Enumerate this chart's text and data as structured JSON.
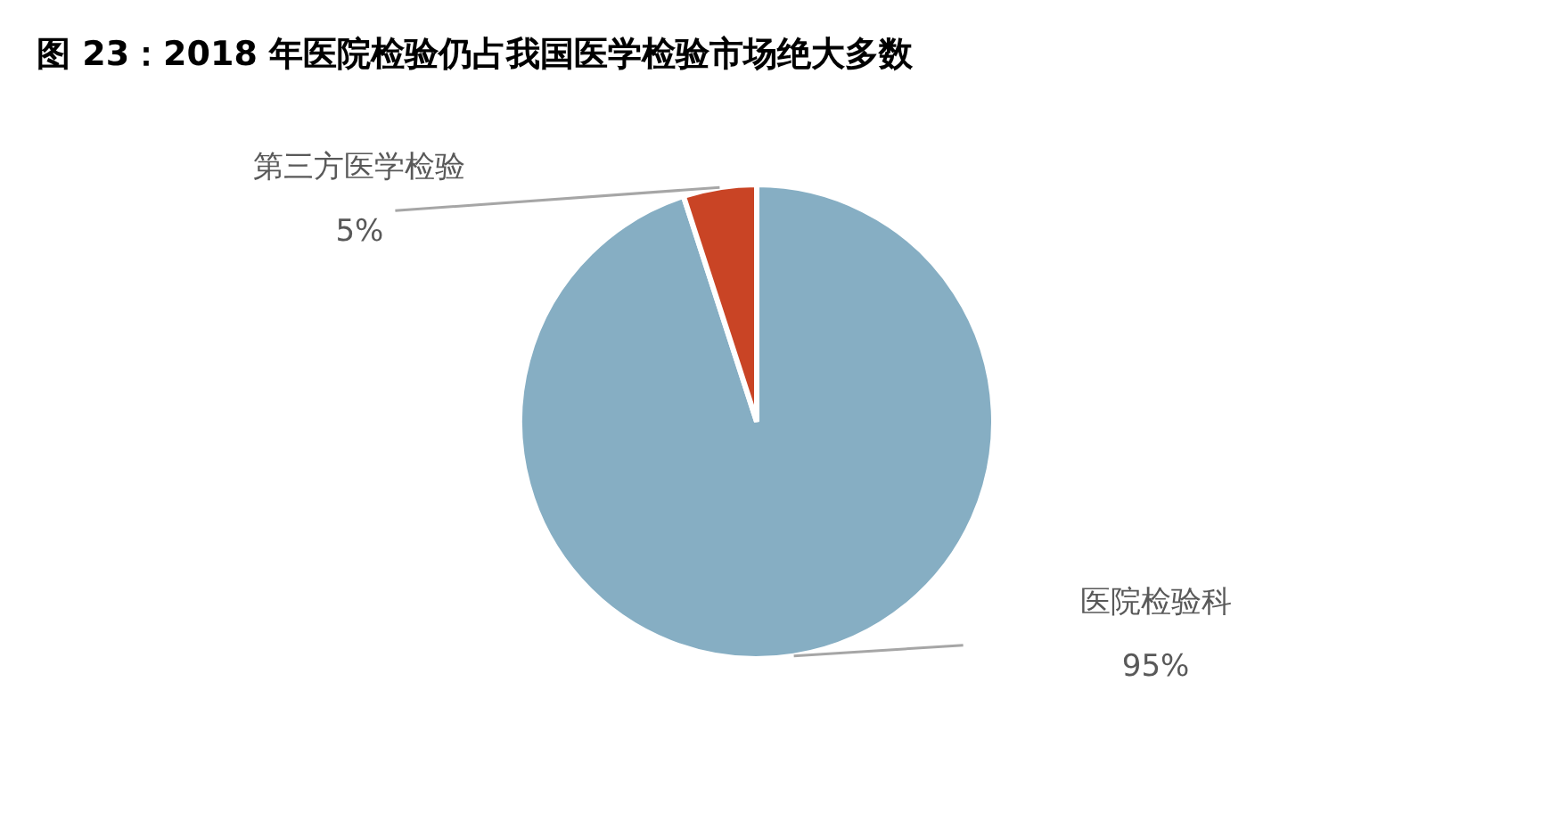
{
  "chart_data": {
    "type": "pie",
    "title": "图 23：2018 年医院检验仍占我国医学检验市场绝大多数",
    "categories": [
      "医院检验科",
      "第三方医学检验"
    ],
    "values": [
      95,
      5
    ],
    "colors": [
      "#86aec3",
      "#c94425"
    ],
    "value_labels": [
      "95%",
      "5%"
    ]
  }
}
